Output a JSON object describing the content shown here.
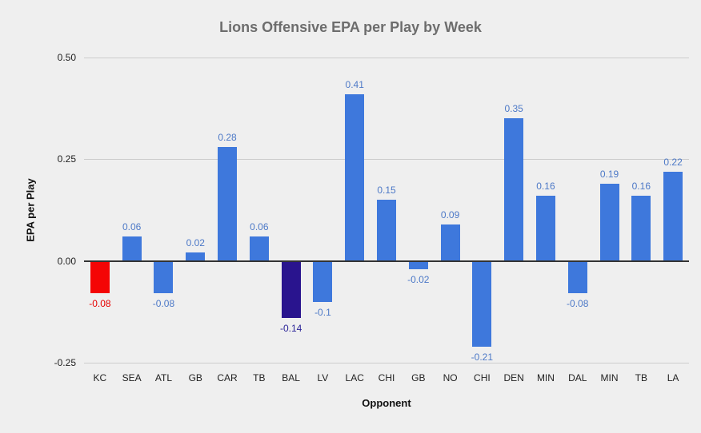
{
  "page": {
    "background_color": "#efefef"
  },
  "chart_data": {
    "type": "bar",
    "title": "Lions Offensive EPA per Play by Week",
    "xlabel": "Opponent",
    "ylabel": "EPA per Play",
    "categories": [
      "KC",
      "SEA",
      "ATL",
      "GB",
      "CAR",
      "TB",
      "BAL",
      "LV",
      "LAC",
      "CHI",
      "GB",
      "NO",
      "CHI",
      "DEN",
      "MIN",
      "DAL",
      "MIN",
      "TB",
      "LA"
    ],
    "values": [
      -0.08,
      0.06,
      -0.08,
      0.02,
      0.28,
      0.06,
      -0.14,
      -0.1,
      0.41,
      0.15,
      -0.02,
      0.09,
      -0.21,
      0.35,
      0.16,
      -0.08,
      0.19,
      0.16,
      0.22
    ],
    "value_labels": [
      "-0.08",
      "0.06",
      "-0.08",
      "0.02",
      "0.28",
      "0.06",
      "-0.14",
      "-0.1",
      "0.41",
      "0.15",
      "-0.02",
      "0.09",
      "-0.21",
      "0.35",
      "0.16",
      "-0.08",
      "0.19",
      "0.16",
      "0.22"
    ],
    "bar_colors": [
      "#f40505",
      "#3e78dc",
      "#3e78dc",
      "#3e78dc",
      "#3e78dc",
      "#3e78dc",
      "#29148e",
      "#3e78dc",
      "#3e78dc",
      "#3e78dc",
      "#3e78dc",
      "#3e78dc",
      "#3e78dc",
      "#3e78dc",
      "#3e78dc",
      "#3e78dc",
      "#3e78dc",
      "#3e78dc",
      "#3e78dc"
    ],
    "label_colors": [
      "#e60000",
      "#4d79c7",
      "#4d79c7",
      "#4d79c7",
      "#4d79c7",
      "#4d79c7",
      "#2c2599",
      "#4d79c7",
      "#4d79c7",
      "#4d79c7",
      "#4d79c7",
      "#4d79c7",
      "#4d79c7",
      "#4d79c7",
      "#4d79c7",
      "#4d79c7",
      "#4d79c7",
      "#4d79c7",
      "#4d79c7"
    ],
    "ylim": [
      -0.25,
      0.5
    ],
    "yticks": [
      0.5,
      0.25,
      0,
      -0.25
    ],
    "ytick_labels": [
      "0.50",
      "0.25",
      "0.00",
      "-0.25"
    ],
    "grid": true,
    "legend": "none"
  }
}
